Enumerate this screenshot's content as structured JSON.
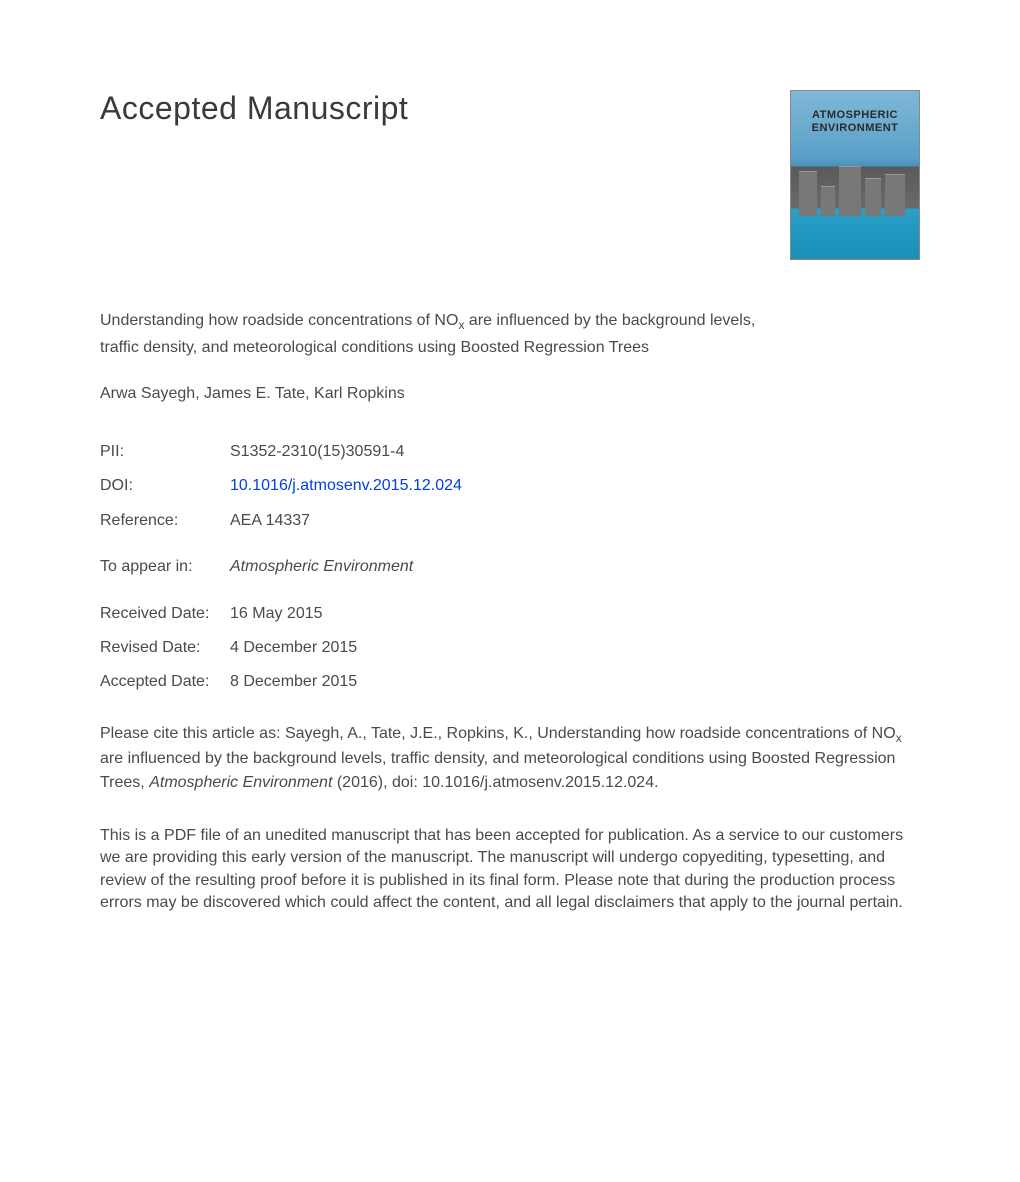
{
  "page_title": "Accepted Manuscript",
  "journal_cover": {
    "title_line1": "ATMOSPHERIC",
    "title_line2": "ENVIRONMENT"
  },
  "article": {
    "title_part1": "Understanding how roadside concentrations of NO",
    "title_sub": "x",
    "title_part2": " are influenced by the background levels, traffic density, and meteorological conditions using Boosted Regression Trees",
    "authors": "Arwa Sayegh, James E. Tate, Karl Ropkins"
  },
  "meta": {
    "pii_label": "PII:",
    "pii_value": "S1352-2310(15)30591-4",
    "doi_label": "DOI:",
    "doi_value": "10.1016/j.atmosenv.2015.12.024",
    "reference_label": "Reference:",
    "reference_value": "AEA 14337",
    "appear_label": "To appear in:",
    "appear_value": "Atmospheric Environment",
    "received_label": "Received Date:",
    "received_value": "16 May 2015",
    "revised_label": "Revised Date:",
    "revised_value": "4 December 2015",
    "accepted_label": "Accepted Date:",
    "accepted_value": "8 December 2015"
  },
  "citation": {
    "part1": "Please cite this article as: Sayegh, A., Tate, J.E., Ropkins, K., Understanding how roadside concentrations of NO",
    "sub": "x",
    "part2": " are influenced by the background levels, traffic density, and meteorological conditions using Boosted Regression Trees, ",
    "journal": "Atmospheric Environment",
    "part3": " (2016), doi: 10.1016/j.atmosenv.2015.12.024."
  },
  "disclaimer": "This is a PDF file of an unedited manuscript that has been accepted for publication. As a service to our customers we are providing this early version of the manuscript. The manuscript will undergo copyediting, typesetting, and review of the resulting proof before it is published in its final form. Please note that during the production process errors may be discovered which could affect the content, and all legal disclaimers that apply to the journal pertain."
}
